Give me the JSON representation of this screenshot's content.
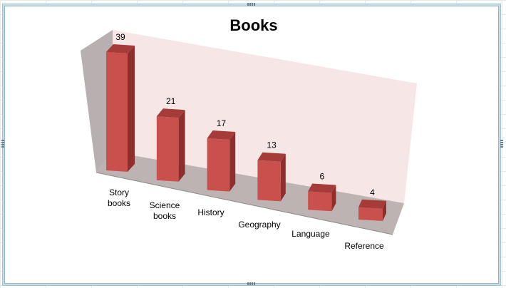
{
  "chart_data": {
    "type": "bar",
    "title": "Books",
    "categories": [
      [
        "Story",
        "books"
      ],
      [
        "Science",
        "books"
      ],
      [
        "History"
      ],
      [
        "Geography"
      ],
      [
        "Language"
      ],
      [
        "Reference"
      ]
    ],
    "values": [
      39,
      21,
      17,
      13,
      6,
      4
    ],
    "ylim": [
      0,
      45
    ],
    "grid": false,
    "legend": "none",
    "style": "3d-perspective",
    "colors": {
      "bar_front": "#c9504c",
      "bar_side": "#8e2f2e",
      "bar_top": "#a53c3a",
      "back_wall": "#f7e6e6",
      "side_wall": "#b8b0b0",
      "floor": "#bdb3b3"
    }
  }
}
